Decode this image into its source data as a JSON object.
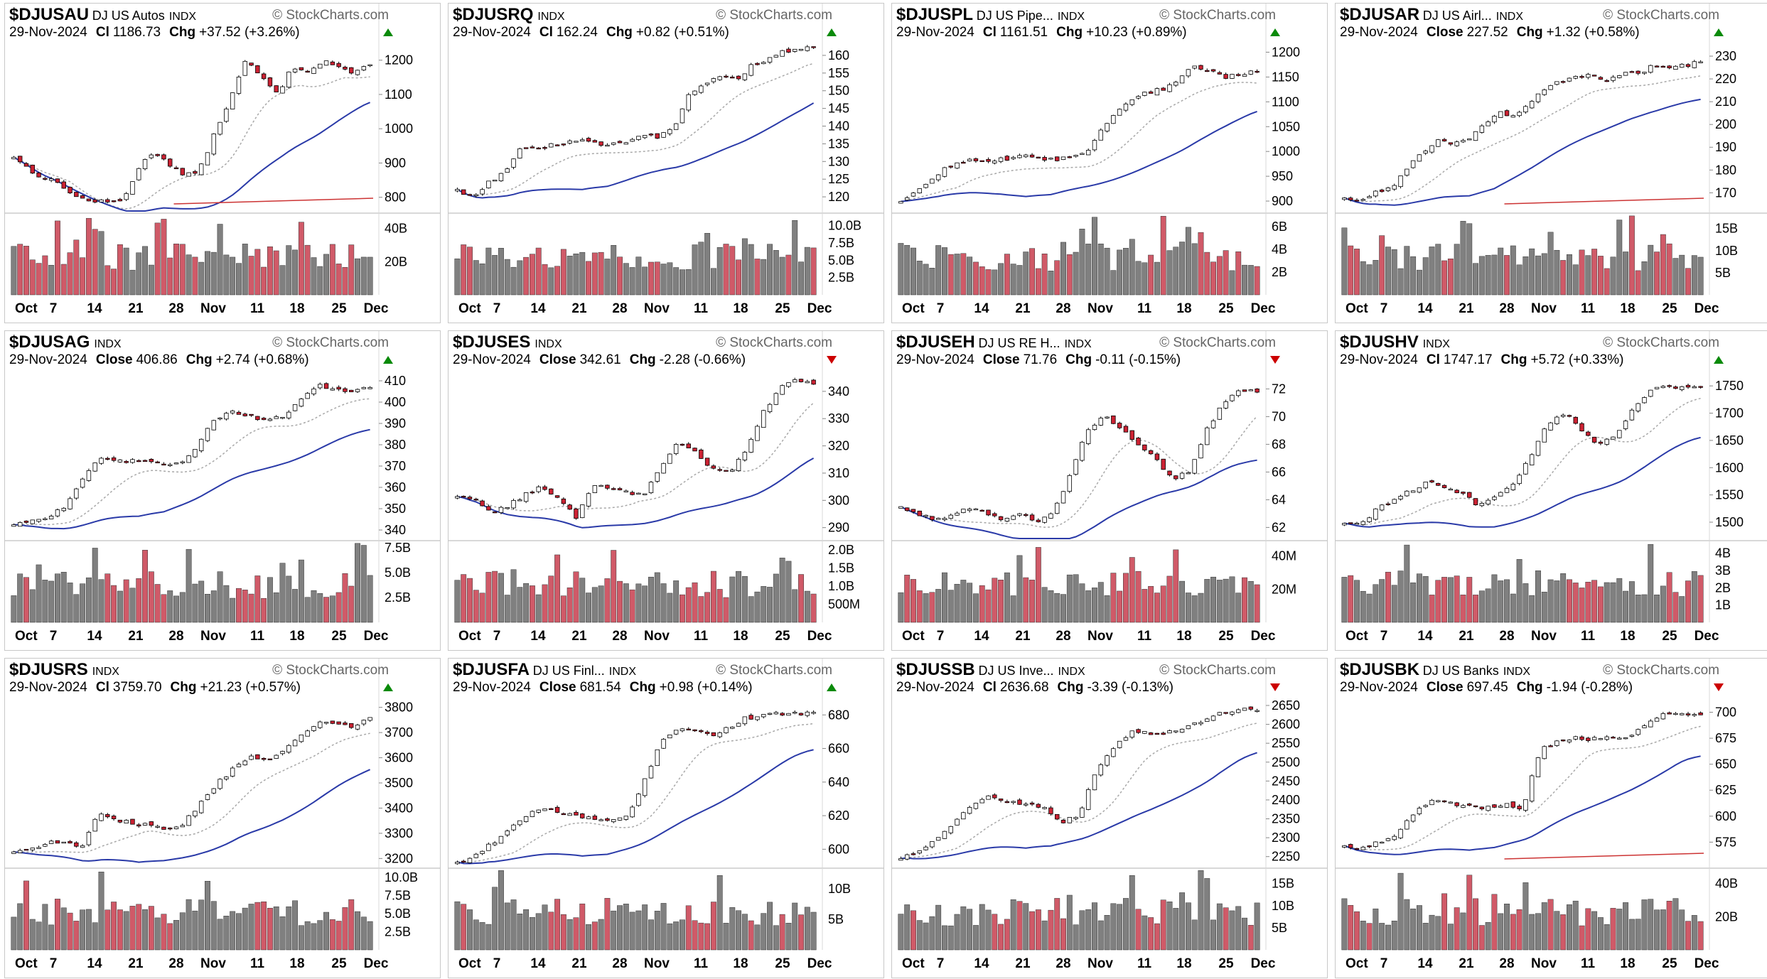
{
  "common": {
    "watermark": "© StockCharts.com",
    "date": "29-Nov-2024",
    "chg_label": "Chg"
  },
  "colors": {
    "up_fill": "#ffffff",
    "down_fill": "#cc2233",
    "vol_up": "#808080",
    "vol_down": "#d05a68",
    "ma_slow": "#2a3aa8",
    "ma_fast": "#a8a8a8",
    "ma_long": "#cc3333"
  },
  "chart_data": [
    {
      "type": "candlestick",
      "symbol": "$DJUSAU",
      "name": "DJ US Autos",
      "exchange": "INDX",
      "close_label": "Cl",
      "close": "1186.73",
      "change": "+37.52 (+3.26%)",
      "direction": "up",
      "y_ticks": [
        800,
        900,
        1000,
        1100,
        1200
      ],
      "ylim": [
        760,
        1245
      ],
      "vol_ticks": [
        "20B",
        "40B"
      ],
      "vol_tick_values": [
        20,
        40
      ],
      "vol_max": 48,
      "x_ticks": [
        "Oct",
        "7",
        "14",
        "21",
        "28",
        "Nov",
        "11",
        "18",
        "25",
        "Dec"
      ],
      "key_closes": [
        920,
        880,
        855,
        840,
        800,
        790,
        785,
        790,
        880,
        935,
        900,
        860,
        880,
        990,
        1090,
        1200,
        1150,
        1100,
        1180,
        1170,
        1200,
        1180,
        1160,
        1186.73
      ],
      "has_long_ma": true
    },
    {
      "type": "candlestick",
      "symbol": "$DJUSRQ",
      "name": "",
      "exchange": "INDX",
      "close_label": "Cl",
      "close": "162.24",
      "change": "+0.82 (+0.51%)",
      "direction": "up",
      "y_ticks": [
        120,
        125,
        130,
        135,
        140,
        145,
        150,
        155,
        160
      ],
      "ylim": [
        116,
        163
      ],
      "vol_ticks": [
        "2.5B",
        "5.0B",
        "7.5B",
        "10.0B"
      ],
      "vol_tick_values": [
        2.5,
        5,
        7.5,
        10
      ],
      "vol_max": 11.5,
      "x_ticks": [
        "Oct",
        "7",
        "14",
        "21",
        "28",
        "Nov",
        "11",
        "18",
        "25",
        "Dec"
      ],
      "key_closes": [
        122,
        120,
        124,
        127,
        133,
        134,
        134.5,
        135,
        136,
        134.8,
        135,
        136,
        138,
        137,
        140,
        149,
        152,
        154,
        153,
        157,
        159,
        161,
        161.4,
        162.24
      ],
      "has_long_ma": false
    },
    {
      "type": "candlestick",
      "symbol": "$DJUSPL",
      "name": "DJ US Pipe...",
      "exchange": "INDX",
      "close_label": "Cl",
      "close": "1161.51",
      "change": "+10.23 (+0.89%)",
      "direction": "up",
      "y_ticks": [
        900,
        950,
        1000,
        1050,
        1100,
        1150,
        1200
      ],
      "ylim": [
        880,
        1215
      ],
      "vol_ticks": [
        "2B",
        "4B",
        "6B"
      ],
      "vol_tick_values": [
        2,
        4,
        6
      ],
      "vol_max": 7,
      "x_ticks": [
        "Oct",
        "7",
        "14",
        "21",
        "28",
        "Nov",
        "11",
        "18",
        "25",
        "Dec"
      ],
      "key_closes": [
        895,
        920,
        945,
        970,
        980,
        985,
        982,
        985,
        990,
        985,
        982,
        990,
        1000,
        1050,
        1080,
        1110,
        1120,
        1125,
        1150,
        1170,
        1165,
        1150,
        1155,
        1161.51
      ],
      "has_long_ma": false
    },
    {
      "type": "candlestick",
      "symbol": "$DJUSAR",
      "name": "DJ US Airl...",
      "exchange": "INDX",
      "close_label": "Close",
      "close": "227.52",
      "change": "+1.32 (+0.58%)",
      "direction": "up",
      "y_ticks": [
        170,
        180,
        190,
        200,
        210,
        220,
        230
      ],
      "ylim": [
        162,
        235
      ],
      "vol_ticks": [
        "5B",
        "10B",
        "15B"
      ],
      "vol_tick_values": [
        5,
        10,
        15
      ],
      "vol_max": 18,
      "x_ticks": [
        "Oct",
        "7",
        "14",
        "21",
        "28",
        "Nov",
        "11",
        "18",
        "25",
        "Dec"
      ],
      "key_closes": [
        168,
        166,
        170,
        172,
        180,
        188,
        193,
        192,
        194,
        200,
        205,
        203,
        210,
        216,
        219,
        222,
        221,
        220,
        223,
        222,
        226,
        225,
        226,
        227.52
      ],
      "has_long_ma": true
    },
    {
      "type": "candlestick",
      "symbol": "$DJUSAG",
      "name": "",
      "exchange": "INDX",
      "close_label": "Close",
      "close": "406.86",
      "change": "+2.74 (+0.68%)",
      "direction": "up",
      "y_ticks": [
        340,
        350,
        360,
        370,
        380,
        390,
        400,
        410
      ],
      "ylim": [
        336,
        414
      ],
      "vol_ticks": [
        "2.5B",
        "5.0B",
        "7.5B"
      ],
      "vol_tick_values": [
        2.5,
        5,
        7.5
      ],
      "vol_max": 8,
      "x_ticks": [
        "Oct",
        "7",
        "14",
        "21",
        "28",
        "Nov",
        "11",
        "18",
        "25",
        "Dec"
      ],
      "key_closes": [
        342,
        344,
        346,
        352,
        365,
        375,
        372,
        373,
        372,
        370,
        375,
        390,
        396,
        394,
        392,
        393,
        400,
        408,
        406,
        405,
        406.86
      ],
      "has_long_ma": false
    },
    {
      "type": "candlestick",
      "symbol": "$DJUSES",
      "name": "",
      "exchange": "INDX",
      "close_label": "Close",
      "close": "342.61",
      "change": "-2.28 (-0.66%)",
      "direction": "down",
      "y_ticks": [
        290,
        300,
        310,
        320,
        330,
        340
      ],
      "ylim": [
        286,
        347
      ],
      "vol_ticks": [
        "500M",
        "1.0B",
        "1.5B",
        "2.0B"
      ],
      "vol_tick_values": [
        0.5,
        1,
        1.5,
        2
      ],
      "vol_max": 2.2,
      "x_ticks": [
        "Oct",
        "7",
        "14",
        "21",
        "28",
        "Nov",
        "11",
        "18",
        "25",
        "Dec"
      ],
      "key_closes": [
        302,
        300,
        295,
        298,
        302,
        305,
        300,
        294,
        306,
        305,
        303,
        302,
        312,
        322,
        318,
        312,
        310,
        318,
        332,
        341,
        344,
        342.61
      ],
      "has_long_ma": false
    },
    {
      "type": "candlestick",
      "symbol": "$DJUSEH",
      "name": "DJ US RE H...",
      "exchange": "INDX",
      "close_label": "Close",
      "close": "71.76",
      "change": "-0.11 (-0.15%)",
      "direction": "down",
      "y_ticks": [
        62,
        64,
        66,
        68,
        70,
        72
      ],
      "ylim": [
        61.2,
        73.2
      ],
      "vol_ticks": [
        "20M",
        "40M"
      ],
      "vol_tick_values": [
        20,
        40
      ],
      "vol_max": 48,
      "x_ticks": [
        "Oct",
        "7",
        "14",
        "21",
        "28",
        "Nov",
        "11",
        "18",
        "25",
        "Dec"
      ],
      "key_closes": [
        63.5,
        63,
        62.5,
        63,
        63.5,
        63,
        62.5,
        63,
        62.5,
        63,
        66,
        69,
        70,
        69,
        68,
        67,
        65.5,
        66,
        69,
        71,
        72,
        71.76
      ],
      "has_long_ma": false
    },
    {
      "type": "candlestick",
      "symbol": "$DJUSHV",
      "name": "",
      "exchange": "INDX",
      "close_label": "Cl",
      "close": "1747.17",
      "change": "+5.72 (+0.33%)",
      "direction": "up",
      "y_ticks": [
        1500,
        1550,
        1600,
        1650,
        1700,
        1750
      ],
      "ylim": [
        1470,
        1775
      ],
      "vol_ticks": [
        "1B",
        "2B",
        "3B",
        "4B"
      ],
      "vol_tick_values": [
        1,
        2,
        3,
        4
      ],
      "vol_max": 4.6,
      "x_ticks": [
        "Oct",
        "7",
        "14",
        "21",
        "28",
        "Nov",
        "11",
        "18",
        "25",
        "Dec"
      ],
      "key_closes": [
        1495,
        1500,
        1525,
        1545,
        1560,
        1575,
        1565,
        1550,
        1530,
        1550,
        1570,
        1620,
        1680,
        1700,
        1670,
        1640,
        1660,
        1710,
        1740,
        1750,
        1745,
        1747.17
      ],
      "has_long_ma": false
    },
    {
      "type": "candlestick",
      "symbol": "$DJUSRS",
      "name": "",
      "exchange": "INDX",
      "close_label": "Cl",
      "close": "3759.70",
      "change": "+21.23 (+0.57%)",
      "direction": "up",
      "y_ticks": [
        3200,
        3300,
        3400,
        3500,
        3600,
        3700,
        3800
      ],
      "ylim": [
        3170,
        3830
      ],
      "vol_ticks": [
        "2.5B",
        "5.0B",
        "7.5B",
        "10.0B"
      ],
      "vol_tick_values": [
        2.5,
        5,
        7.5,
        10
      ],
      "vol_max": 11,
      "x_ticks": [
        "Oct",
        "7",
        "14",
        "21",
        "28",
        "Nov",
        "11",
        "18",
        "25",
        "Dec"
      ],
      "key_closes": [
        3230,
        3240,
        3260,
        3270,
        3250,
        3380,
        3350,
        3340,
        3330,
        3320,
        3340,
        3420,
        3500,
        3560,
        3600,
        3580,
        3640,
        3700,
        3740,
        3730,
        3720,
        3759.7
      ],
      "has_long_ma": false
    },
    {
      "type": "candlestick",
      "symbol": "$DJUSFA",
      "name": "DJ US Finl...",
      "exchange": "INDX",
      "close_label": "Close",
      "close": "681.54",
      "change": "+0.98 (+0.14%)",
      "direction": "up",
      "y_ticks": [
        600,
        620,
        640,
        660,
        680
      ],
      "ylim": [
        590,
        689
      ],
      "vol_ticks": [
        "5B",
        "10B"
      ],
      "vol_tick_values": [
        5,
        10
      ],
      "vol_max": 13,
      "x_ticks": [
        "Oct",
        "7",
        "14",
        "21",
        "28",
        "Nov",
        "11",
        "18",
        "25",
        "Dec"
      ],
      "key_closes": [
        592,
        596,
        603,
        612,
        620,
        624,
        622,
        620,
        618,
        616,
        620,
        640,
        665,
        672,
        670,
        668,
        672,
        678,
        680,
        681,
        680.5,
        681.54
      ],
      "has_long_ma": false
    },
    {
      "type": "candlestick",
      "symbol": "$DJUSSB",
      "name": "DJ US Inve...",
      "exchange": "INDX",
      "close_label": "Cl",
      "close": "2636.68",
      "change": "-3.39 (-0.13%)",
      "direction": "down",
      "y_ticks": [
        2250,
        2300,
        2350,
        2400,
        2450,
        2500,
        2550,
        2600,
        2650
      ],
      "ylim": [
        2225,
        2665
      ],
      "vol_ticks": [
        "5B",
        "10B",
        "15B"
      ],
      "vol_tick_values": [
        5,
        10,
        15
      ],
      "vol_max": 18,
      "x_ticks": [
        "Oct",
        "7",
        "14",
        "21",
        "28",
        "Nov",
        "11",
        "18",
        "25",
        "Dec"
      ],
      "key_closes": [
        2250,
        2260,
        2300,
        2340,
        2390,
        2410,
        2400,
        2390,
        2380,
        2340,
        2360,
        2480,
        2540,
        2580,
        2575,
        2580,
        2590,
        2610,
        2630,
        2640,
        2636.68
      ],
      "has_long_ma": false
    },
    {
      "type": "candlestick",
      "symbol": "$DJUSBK",
      "name": "DJ US Banks",
      "exchange": "INDX",
      "close_label": "Close",
      "close": "697.45",
      "change": "-1.94 (-0.28%)",
      "direction": "down",
      "y_ticks": [
        575,
        600,
        625,
        650,
        675,
        700
      ],
      "ylim": [
        552,
        712
      ],
      "vol_ticks": [
        "20B",
        "40B"
      ],
      "vol_tick_values": [
        20,
        40
      ],
      "vol_max": 48,
      "x_ticks": [
        "Oct",
        "7",
        "14",
        "21",
        "28",
        "Nov",
        "11",
        "18",
        "25",
        "Dec"
      ],
      "key_closes": [
        572,
        568,
        575,
        583,
        605,
        615,
        612,
        610,
        608,
        612,
        606,
        665,
        672,
        675,
        674,
        676,
        675,
        690,
        698,
        697,
        697.45
      ],
      "has_long_ma": true
    }
  ]
}
